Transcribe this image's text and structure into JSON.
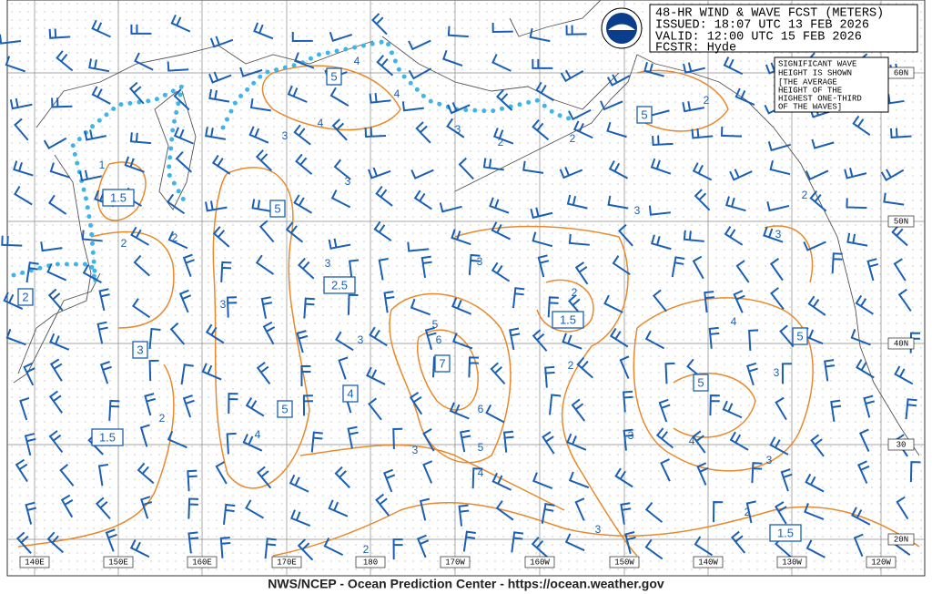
{
  "header": {
    "lines": [
      "48-HR WIND & WAVE FCST (METERS)",
      "ISSUED: 18:07 UTC 13 FEB 2026",
      "VALID: 12:00 UTC 15 FEB 2026",
      "FCSTR: Hyde"
    ]
  },
  "note": {
    "lines": [
      "SIGNIFICANT WAVE",
      "HEIGHT IS SHOWN",
      "[THE AVERAGE",
      "HEIGHT OF THE",
      "HIGHEST ONE-THIRD",
      "OF THE WAVES]"
    ]
  },
  "latitude_labels": [
    "60N",
    "50N",
    "40N",
    "30",
    "20N"
  ],
  "longitude_labels": [
    "140E",
    "150E",
    "160E",
    "170E",
    "180",
    "170W",
    "160W",
    "150W",
    "140W",
    "130W",
    "120W"
  ],
  "contour_labels": [
    1,
    2,
    2,
    3,
    3,
    3,
    3,
    3,
    4,
    4,
    4,
    2,
    4,
    5,
    6,
    6,
    5,
    4,
    3,
    2,
    3,
    2,
    2,
    3,
    3,
    2,
    2,
    3,
    3,
    2,
    2,
    3,
    4,
    3,
    4,
    3,
    2
  ],
  "boxed_labels": [
    1.5,
    2,
    3,
    1.5,
    5,
    5,
    2.5,
    4,
    5,
    7,
    1.5,
    5,
    5,
    5,
    1.5
  ],
  "footer": "NWS/NCEP - Ocean Prediction Center - https://ocean.weather.gov"
}
